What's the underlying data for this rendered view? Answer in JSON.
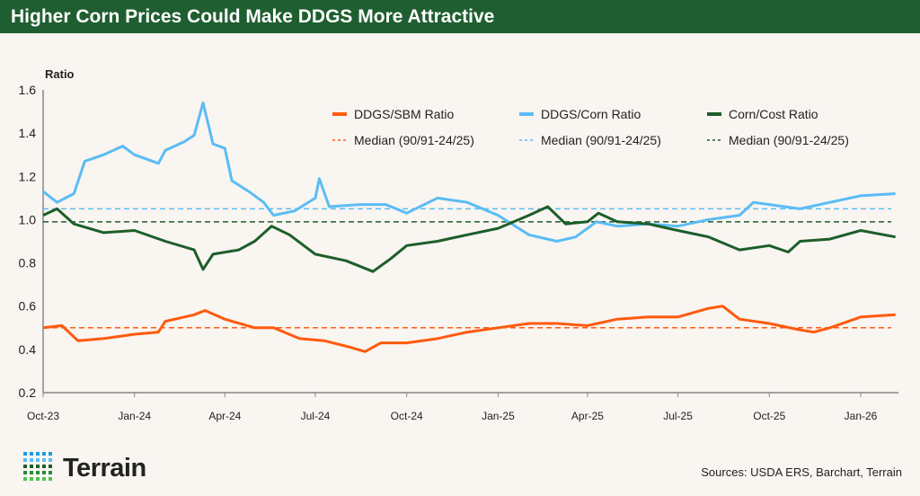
{
  "title": "Higher Corn Prices Could Make DDGS More Attractive",
  "logo_text": "Terrain",
  "sources": "Sources: USDA ERS, Barchart, Terrain",
  "chart_data": {
    "type": "line",
    "ylabel": "Ratio",
    "ylim": [
      0.2,
      1.6
    ],
    "yticks": [
      "0.2",
      "0.4",
      "0.6",
      "0.8",
      "1.0",
      "1.2",
      "1.4",
      "1.6"
    ],
    "xticks": [
      "Oct-23",
      "Jan-24",
      "Apr-24",
      "Jul-24",
      "Oct-24",
      "Jan-25",
      "Apr-25",
      "Jul-25",
      "Oct-25",
      "Jan-26"
    ],
    "xlim": [
      "2023-10-01",
      "2026-02-10"
    ],
    "grid": false,
    "legend": "top-right",
    "series": [
      {
        "name": "DDGS/SBM Ratio",
        "color": "#ff5a0f",
        "x": [
          "2023-10-01",
          "2023-10-20",
          "2023-11-05",
          "2023-12-01",
          "2024-01-01",
          "2024-01-25",
          "2024-02-01",
          "2024-03-01",
          "2024-03-12",
          "2024-04-01",
          "2024-05-01",
          "2024-05-20",
          "2024-06-15",
          "2024-07-10",
          "2024-08-05",
          "2024-08-20",
          "2024-09-05",
          "2024-10-01",
          "2024-11-01",
          "2024-12-01",
          "2025-01-01",
          "2025-02-01",
          "2025-03-01",
          "2025-04-01",
          "2025-05-01",
          "2025-06-01",
          "2025-07-01",
          "2025-08-01",
          "2025-08-15",
          "2025-09-01",
          "2025-10-01",
          "2025-11-01",
          "2025-11-15",
          "2025-12-01",
          "2026-01-01",
          "2026-02-05"
        ],
        "values": [
          0.5,
          0.51,
          0.44,
          0.45,
          0.47,
          0.48,
          0.53,
          0.56,
          0.58,
          0.54,
          0.5,
          0.5,
          0.45,
          0.44,
          0.41,
          0.39,
          0.43,
          0.43,
          0.45,
          0.48,
          0.5,
          0.52,
          0.52,
          0.51,
          0.54,
          0.55,
          0.55,
          0.59,
          0.6,
          0.54,
          0.52,
          0.49,
          0.48,
          0.5,
          0.55,
          0.56
        ]
      },
      {
        "name": "DDGS/Corn Ratio",
        "color": "#5bbcf5",
        "x": [
          "2023-10-01",
          "2023-10-15",
          "2023-11-01",
          "2023-11-12",
          "2023-12-01",
          "2023-12-20",
          "2024-01-01",
          "2024-01-25",
          "2024-02-01",
          "2024-02-20",
          "2024-03-01",
          "2024-03-10",
          "2024-03-20",
          "2024-04-01",
          "2024-04-08",
          "2024-04-25",
          "2024-05-10",
          "2024-05-20",
          "2024-06-10",
          "2024-07-01",
          "2024-07-05",
          "2024-07-15",
          "2024-08-15",
          "2024-09-10",
          "2024-10-01",
          "2024-11-01",
          "2024-12-01",
          "2025-01-01",
          "2025-02-01",
          "2025-03-01",
          "2025-03-20",
          "2025-04-10",
          "2025-05-01",
          "2025-06-01",
          "2025-07-01",
          "2025-08-01",
          "2025-09-01",
          "2025-09-15",
          "2025-10-01",
          "2025-11-01",
          "2025-12-01",
          "2026-01-01",
          "2026-02-05"
        ],
        "values": [
          1.13,
          1.08,
          1.12,
          1.27,
          1.3,
          1.34,
          1.3,
          1.26,
          1.32,
          1.36,
          1.39,
          1.54,
          1.35,
          1.33,
          1.18,
          1.13,
          1.08,
          1.02,
          1.04,
          1.1,
          1.19,
          1.06,
          1.07,
          1.07,
          1.03,
          1.1,
          1.08,
          1.02,
          0.93,
          0.9,
          0.92,
          0.99,
          0.97,
          0.98,
          0.97,
          1.0,
          1.02,
          1.08,
          1.07,
          1.05,
          1.08,
          1.11,
          1.12
        ]
      },
      {
        "name": "Corn/Cost Ratio",
        "color": "#1d5e2b",
        "x": [
          "2023-10-01",
          "2023-10-15",
          "2023-11-01",
          "2023-12-01",
          "2024-01-01",
          "2024-02-01",
          "2024-03-01",
          "2024-03-10",
          "2024-03-20",
          "2024-04-15",
          "2024-05-01",
          "2024-05-18",
          "2024-06-05",
          "2024-07-01",
          "2024-08-01",
          "2024-08-28",
          "2024-09-15",
          "2024-10-01",
          "2024-11-01",
          "2024-12-01",
          "2025-01-01",
          "2025-02-01",
          "2025-02-20",
          "2025-03-10",
          "2025-04-01",
          "2025-04-12",
          "2025-05-01",
          "2025-06-01",
          "2025-07-01",
          "2025-08-01",
          "2025-09-01",
          "2025-10-01",
          "2025-10-20",
          "2025-11-01",
          "2025-12-01",
          "2026-01-01",
          "2026-02-05"
        ],
        "values": [
          1.02,
          1.05,
          0.98,
          0.94,
          0.95,
          0.9,
          0.86,
          0.77,
          0.84,
          0.86,
          0.9,
          0.97,
          0.93,
          0.84,
          0.81,
          0.76,
          0.82,
          0.88,
          0.9,
          0.93,
          0.96,
          1.02,
          1.06,
          0.98,
          0.99,
          1.03,
          0.99,
          0.98,
          0.95,
          0.92,
          0.86,
          0.88,
          0.85,
          0.9,
          0.91,
          0.95,
          0.92
        ]
      }
    ],
    "medians": [
      {
        "name": "Median (90/91-24/25)",
        "color": "#ff5a0f",
        "value": 0.5
      },
      {
        "name": "Median (90/91-24/25)",
        "color": "#5bbcf5",
        "value": 1.05
      },
      {
        "name": "Median (90/91-24/25)",
        "color": "#1d5e2b",
        "value": 0.99
      }
    ]
  }
}
